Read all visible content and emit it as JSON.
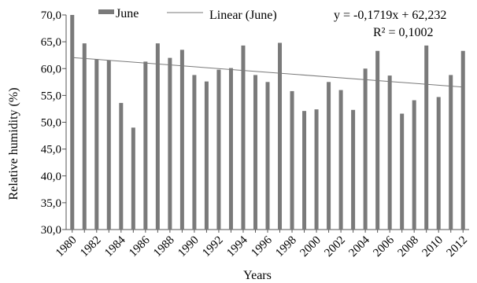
{
  "chart_data": {
    "type": "bar",
    "xlabel": "Years",
    "ylabel": "Relative humidity (%)",
    "ylim": [
      30,
      70
    ],
    "y_ticks": [
      "30,0",
      "35,0",
      "40,0",
      "45,0",
      "50,0",
      "55,0",
      "60,0",
      "65,0",
      "70,0"
    ],
    "y_tick_values": [
      30,
      35,
      40,
      45,
      50,
      55,
      60,
      65,
      70
    ],
    "grid": false,
    "legend_position": "top",
    "categories": [
      "1980",
      "1981",
      "1982",
      "1983",
      "1984",
      "1985",
      "1986",
      "1987",
      "1988",
      "1989",
      "1990",
      "1991",
      "1992",
      "1993",
      "1994",
      "1995",
      "1996",
      "1997",
      "1998",
      "1999",
      "2000",
      "2001",
      "2002",
      "2003",
      "2004",
      "2005",
      "2006",
      "2007",
      "2008",
      "2009",
      "2010",
      "2011",
      "2012"
    ],
    "x_tick_labels": [
      "1980",
      "",
      "1982",
      "",
      "1984",
      "",
      "1986",
      "",
      "1988",
      "",
      "1990",
      "",
      "1992",
      "",
      "1994",
      "",
      "1996",
      "",
      "1998",
      "",
      "2000",
      "",
      "2002",
      "",
      "2004",
      "",
      "2006",
      "",
      "2008",
      "",
      "2010",
      "",
      "2012"
    ],
    "series": [
      {
        "name": "June",
        "color": "#7a7a7a",
        "values": [
          70.0,
          64.7,
          61.7,
          61.5,
          53.6,
          49.0,
          61.3,
          64.7,
          62.0,
          63.5,
          58.8,
          57.6,
          59.8,
          60.1,
          64.3,
          58.8,
          57.5,
          64.8,
          55.8,
          52.1,
          52.4,
          57.5,
          56.0,
          52.3,
          60.0,
          63.3,
          58.7,
          51.6,
          54.1,
          64.3,
          54.7,
          58.8,
          63.3
        ]
      }
    ],
    "trendline": {
      "name": "Linear (June)",
      "color": "#7a7a7a",
      "slope": -0.1719,
      "intercept": 62.232
    },
    "annotations": {
      "equation": "y = -0,1719x + 62,232",
      "r_squared": "R² = 0,1002"
    }
  }
}
